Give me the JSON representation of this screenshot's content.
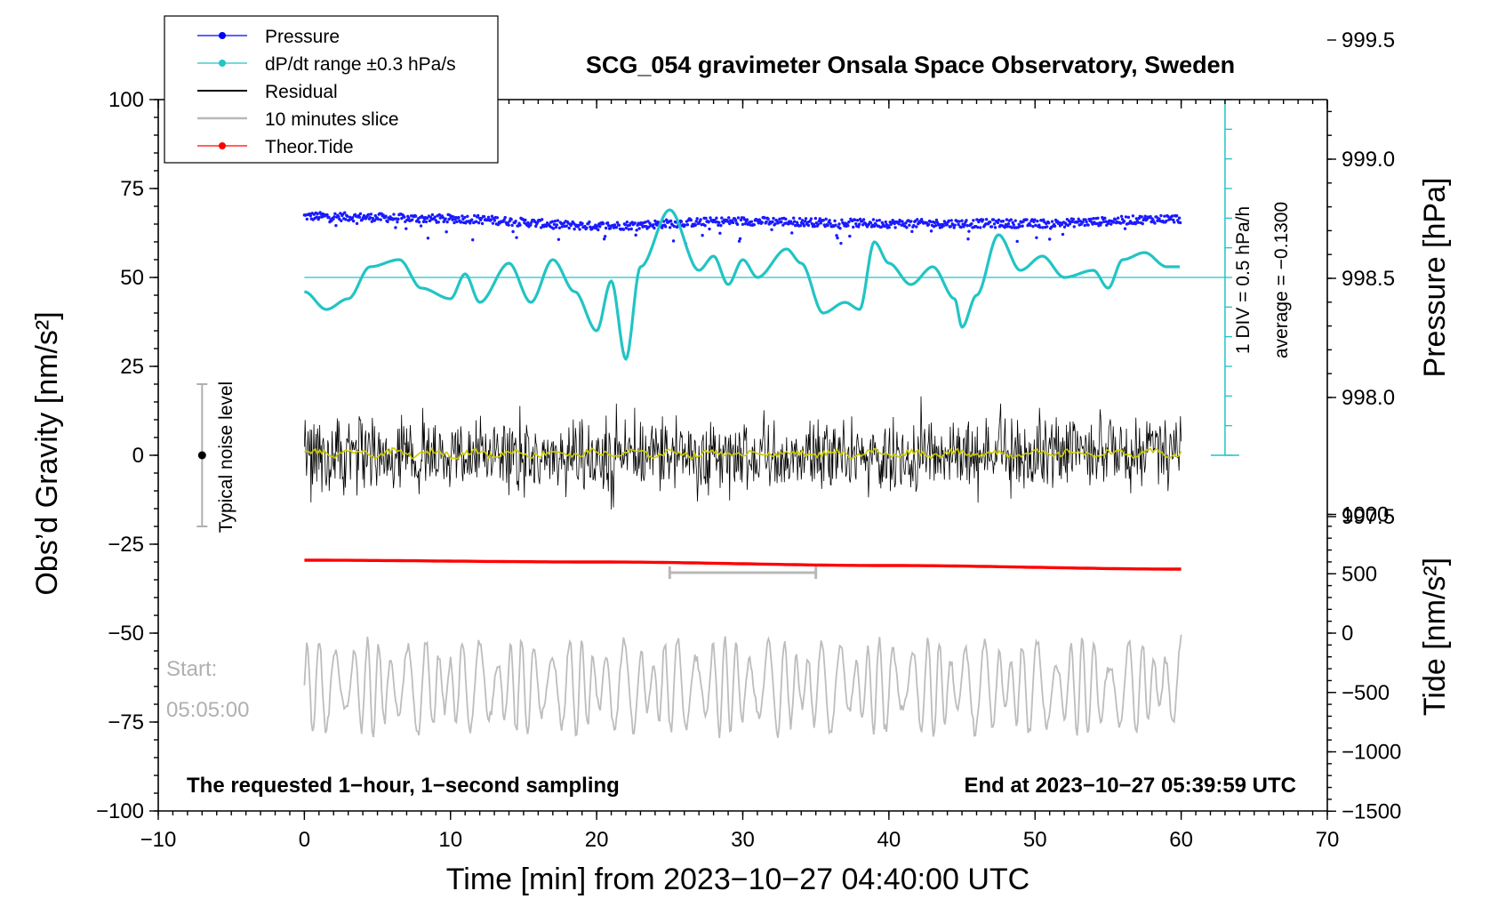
{
  "chart_data": {
    "type": "line",
    "title": "SCG_054 gravimeter Onsala Space Observatory, Sweden",
    "xlabel": "Time [min] from 2023−10−27 04:40:00 UTC",
    "ylabel": "Obs’d Gravity [nm/s²]",
    "y2label": "Pressure [hPa]",
    "y3label": "Tide [nm/s²]",
    "xlim": [
      -10,
      70
    ],
    "ylim": [
      -100,
      100
    ],
    "x_ticks": [
      -10,
      0,
      10,
      20,
      30,
      40,
      50,
      60,
      70
    ],
    "x_tick_labels": [
      "−10",
      "0",
      "10",
      "20",
      "30",
      "40",
      "50",
      "60",
      "70"
    ],
    "y_ticks": [
      100,
      75,
      50,
      25,
      0,
      -25,
      -50,
      -75,
      -100
    ],
    "y_tick_labels": [
      "100",
      "75",
      "50",
      "25",
      "0",
      "−25",
      "−50",
      "−75",
      "−100"
    ],
    "pressure_ticks": [
      999.5,
      999.0,
      998.5,
      998.0,
      997.5
    ],
    "pressure_tick_labels": [
      "999.5",
      "999.0",
      "998.5",
      "998.0",
      "997.5"
    ],
    "tide_ticks": [
      1000,
      500,
      0,
      -500,
      -1000,
      -1500
    ],
    "tide_tick_labels": [
      "1000",
      "500",
      "0",
      "−500",
      "−1000",
      "−1500"
    ],
    "legend": [
      {
        "label": "Pressure",
        "color": "#0000ff",
        "marker": true
      },
      {
        "label": "dP/dt range ±0.3 hPa/s",
        "color": "#22c4c4",
        "marker": true
      },
      {
        "label": "Residual",
        "color": "#000000",
        "marker": false
      },
      {
        "label": "10 minutes slice",
        "color": "#b8b8b8",
        "marker": false
      },
      {
        "label": "Theor.Tide",
        "color": "#ff0000",
        "marker": true
      }
    ],
    "series": [
      {
        "name": "Pressure",
        "axis": "pressure_hPa",
        "x_range": [
          0,
          60
        ],
        "level": 998.75,
        "points": [
          [
            0,
            998.76
          ],
          [
            10,
            998.75
          ],
          [
            20,
            998.72
          ],
          [
            30,
            998.74
          ],
          [
            40,
            998.73
          ],
          [
            50,
            998.73
          ],
          [
            60,
            998.75
          ]
        ]
      },
      {
        "name": "dP/dt",
        "axis": "gravity_display",
        "x_range": [
          0,
          60
        ],
        "baseline": 50,
        "points": [
          [
            0,
            46
          ],
          [
            1.5,
            41
          ],
          [
            3,
            44
          ],
          [
            4.5,
            53
          ],
          [
            6.5,
            55
          ],
          [
            8,
            47
          ],
          [
            10,
            44
          ],
          [
            11,
            51
          ],
          [
            12,
            43
          ],
          [
            14,
            54
          ],
          [
            15.5,
            43
          ],
          [
            17,
            55
          ],
          [
            18.5,
            46
          ],
          [
            20,
            35
          ],
          [
            21,
            49
          ],
          [
            22,
            27
          ],
          [
            23,
            53
          ],
          [
            25,
            69
          ],
          [
            27,
            52
          ],
          [
            28,
            56
          ],
          [
            29,
            48
          ],
          [
            30,
            55
          ],
          [
            31,
            50
          ],
          [
            33,
            58
          ],
          [
            34,
            54
          ],
          [
            35.5,
            40
          ],
          [
            37,
            43
          ],
          [
            38,
            41
          ],
          [
            39,
            60
          ],
          [
            40,
            54
          ],
          [
            41.5,
            48
          ],
          [
            43,
            53
          ],
          [
            44.5,
            44
          ],
          [
            45,
            36
          ],
          [
            46,
            45
          ],
          [
            47.5,
            62
          ],
          [
            49,
            52
          ],
          [
            50.5,
            56
          ],
          [
            52,
            50
          ],
          [
            54,
            52
          ],
          [
            55,
            47
          ],
          [
            56,
            55
          ],
          [
            57.5,
            57
          ],
          [
            59,
            53
          ],
          [
            60,
            53
          ]
        ]
      },
      {
        "name": "Residual",
        "axis": "gravity",
        "x_range": [
          0,
          60
        ],
        "mean": 0,
        "noise_range": [
          -17,
          18
        ]
      },
      {
        "name": "Residual 10-minute mean",
        "color": "#cccc00",
        "axis": "gravity",
        "x_range": [
          0,
          60
        ],
        "mean": 0.5
      },
      {
        "name": "Theor.Tide",
        "axis": "gravity_display",
        "x_range": [
          0,
          60
        ],
        "points": [
          [
            0,
            -29.5
          ],
          [
            20,
            -30
          ],
          [
            40,
            -31
          ],
          [
            60,
            -32
          ]
        ]
      },
      {
        "name": "10 minutes slice",
        "axis": "gravity_display",
        "x_range": [
          0,
          60
        ],
        "center": -65,
        "amplitude_range": [
          -80,
          -47
        ]
      }
    ],
    "slice_marker": {
      "x_range": [
        25,
        35
      ],
      "y": -33
    },
    "noise_bar": {
      "x": -7,
      "y_range": [
        -20,
        20
      ],
      "center": 0,
      "label": "Typical noise level"
    },
    "dpdt_scale": {
      "x": 63,
      "y_range": [
        0,
        100
      ],
      "baseline": 50,
      "division_label": "1 DIV = 0.5 hPa/h",
      "average_label": "average = −0.1300"
    },
    "annotations": {
      "start_label": "Start:",
      "start_time": "05:05:00",
      "sampling_note": "The requested 1−hour, 1−second sampling",
      "end_note": "End at 2023−10−27 05:39:59 UTC"
    }
  }
}
